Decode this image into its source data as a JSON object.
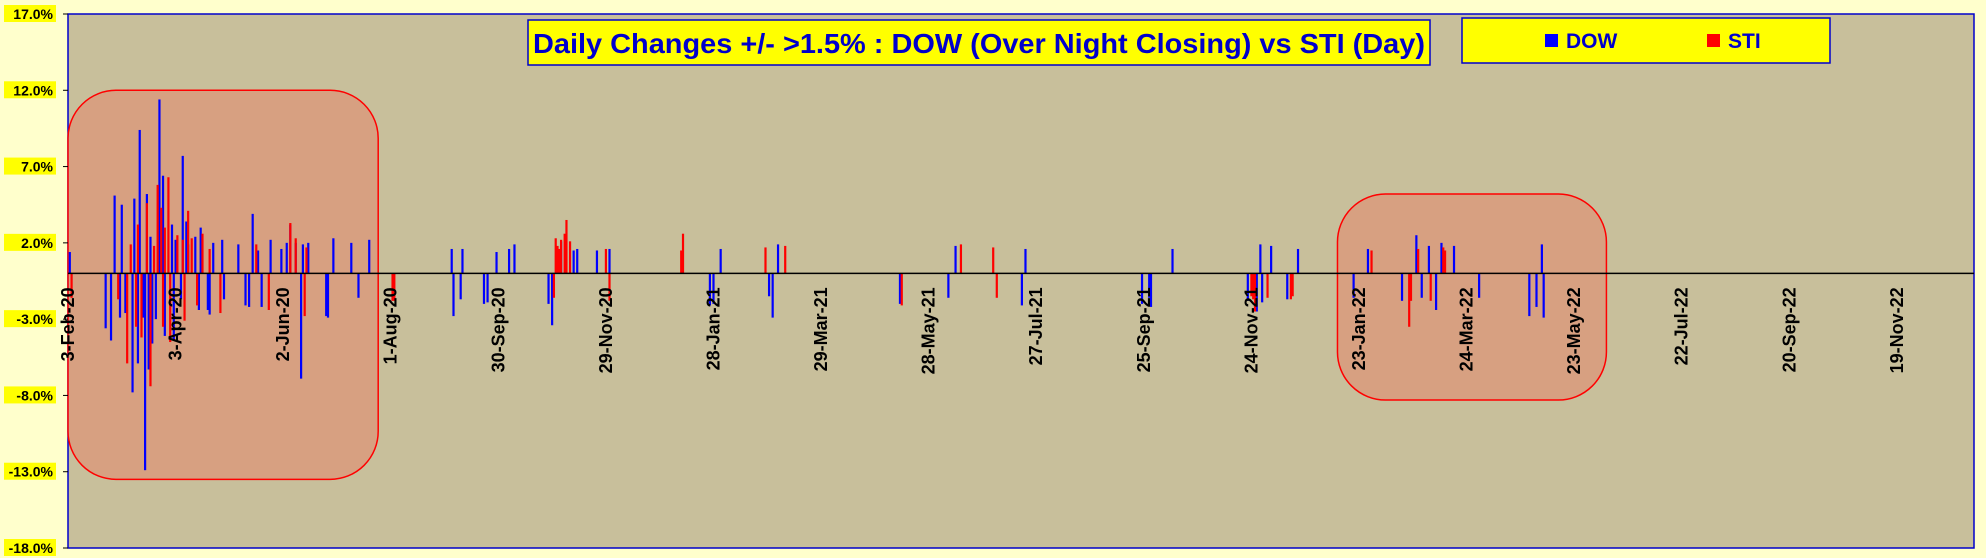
{
  "chart_data": {
    "type": "bar",
    "title": "Daily Changes +/- >1.5% : DOW (Over Night Closing) vs STI (Day)",
    "xlabel": "",
    "ylabel": "",
    "ylim": [
      -18,
      17
    ],
    "xlim": [
      "2020-02-03",
      "2023-01-01"
    ],
    "y_tick_labels": [
      "17.0%",
      "12.0%",
      "7.0%",
      "2.0%",
      "-3.0%",
      "-8.0%",
      "-13.0%",
      "-18.0%"
    ],
    "y_tick_values": [
      17,
      12,
      7,
      2,
      -3,
      -8,
      -13,
      -18
    ],
    "x_tick_labels": [
      "3-Feb-20",
      "3-Apr-20",
      "2-Jun-20",
      "1-Aug-20",
      "30-Sep-20",
      "29-Nov-20",
      "28-Jan-21",
      "29-Mar-21",
      "28-May-21",
      "27-Jul-21",
      "25-Sep-21",
      "24-Nov-21",
      "23-Jan-22",
      "24-Mar-22",
      "23-May-22",
      "22-Jul-22",
      "20-Sep-22",
      "19-Nov-22"
    ],
    "x_tick_dates": [
      "2020-02-03",
      "2020-04-03",
      "2020-06-02",
      "2020-08-01",
      "2020-09-30",
      "2020-11-29",
      "2021-01-28",
      "2021-03-29",
      "2021-05-28",
      "2021-07-27",
      "2021-09-25",
      "2021-11-24",
      "2022-01-23",
      "2022-03-24",
      "2022-05-23",
      "2022-07-22",
      "2022-09-20",
      "2022-11-19"
    ],
    "legend_position": "top-right",
    "grid": false,
    "colors": {
      "plot_bg": "#c8bf9b",
      "page_bg": "#ffffcc",
      "dow": "#0000ff",
      "sti": "#ff0000",
      "frame": "#0000cc",
      "highlight": "#d99a7c",
      "highlight_border": "#ff0000",
      "title_bg": "#ffff00"
    },
    "highlight_regions": [
      {
        "start": "2020-02-03",
        "end": "2020-07-25",
        "ymin": -13.5,
        "ymax": 12
      },
      {
        "start": "2022-01-11",
        "end": "2022-06-10",
        "ymin": -8.3,
        "ymax": 5.2
      }
    ],
    "series": [
      {
        "name": "DOW",
        "points": [
          [
            "2020-02-04",
            1.4
          ],
          [
            "2020-02-24",
            -3.6
          ],
          [
            "2020-02-27",
            -4.4
          ],
          [
            "2020-02-29",
            5.1
          ],
          [
            "2020-03-03",
            -2.9
          ],
          [
            "2020-03-04",
            4.5
          ],
          [
            "2020-03-06",
            -2.6
          ],
          [
            "2020-03-10",
            -7.8
          ],
          [
            "2020-03-11",
            4.9
          ],
          [
            "2020-03-13",
            -5.9
          ],
          [
            "2020-03-14",
            9.4
          ],
          [
            "2020-03-16",
            -2.9
          ],
          [
            "2020-03-17",
            -12.9
          ],
          [
            "2020-03-18",
            5.2
          ],
          [
            "2020-03-19",
            -6.3
          ],
          [
            "2020-03-20",
            2.4
          ],
          [
            "2020-03-21",
            -4.6
          ],
          [
            "2020-03-23",
            -3.0
          ],
          [
            "2020-03-25",
            11.4
          ],
          [
            "2020-03-26",
            2.4
          ],
          [
            "2020-03-27",
            6.4
          ],
          [
            "2020-03-28",
            -4.1
          ],
          [
            "2020-04-01",
            3.2
          ],
          [
            "2020-04-02",
            -4.4
          ],
          [
            "2020-04-03",
            2.2
          ],
          [
            "2020-04-06",
            -1.7
          ],
          [
            "2020-04-07",
            7.7
          ],
          [
            "2020-04-09",
            3.4
          ],
          [
            "2020-04-10",
            1.9
          ],
          [
            "2020-04-14",
            2.4
          ],
          [
            "2020-04-16",
            -2.4
          ],
          [
            "2020-04-17",
            3.0
          ],
          [
            "2020-04-21",
            -2.4
          ],
          [
            "2020-04-22",
            -2.7
          ],
          [
            "2020-04-24",
            2.0
          ],
          [
            "2020-04-29",
            2.2
          ],
          [
            "2020-04-30",
            -1.7
          ],
          [
            "2020-05-08",
            1.9
          ],
          [
            "2020-05-12",
            -2.1
          ],
          [
            "2020-05-14",
            -2.2
          ],
          [
            "2020-05-16",
            3.9
          ],
          [
            "2020-05-19",
            1.5
          ],
          [
            "2020-05-21",
            -2.2
          ],
          [
            "2020-05-26",
            2.2
          ],
          [
            "2020-06-01",
            1.6
          ],
          [
            "2020-06-04",
            2.0
          ],
          [
            "2020-06-06",
            3.2
          ],
          [
            "2020-06-09",
            2.0
          ],
          [
            "2020-06-12",
            -6.9
          ],
          [
            "2020-06-13",
            1.9
          ],
          [
            "2020-06-16",
            2.0
          ],
          [
            "2020-06-26",
            -2.8
          ],
          [
            "2020-06-27",
            -2.9
          ],
          [
            "2020-06-30",
            2.3
          ],
          [
            "2020-07-10",
            2.0
          ],
          [
            "2020-07-14",
            -1.6
          ],
          [
            "2020-07-20",
            2.2
          ],
          [
            "2020-09-04",
            1.6
          ],
          [
            "2020-09-05",
            -2.8
          ],
          [
            "2020-09-09",
            -1.7
          ],
          [
            "2020-09-10",
            1.6
          ],
          [
            "2020-09-22",
            -2.0
          ],
          [
            "2020-09-24",
            -1.9
          ],
          [
            "2020-09-29",
            1.4
          ],
          [
            "2020-10-06",
            1.6
          ],
          [
            "2020-10-09",
            1.9
          ],
          [
            "2020-10-28",
            -2.0
          ],
          [
            "2020-10-30",
            -3.4
          ],
          [
            "2020-11-04",
            2.1
          ],
          [
            "2020-11-11",
            1.5
          ],
          [
            "2020-11-13",
            1.6
          ],
          [
            "2020-11-24",
            1.5
          ],
          [
            "2020-12-01",
            1.6
          ],
          [
            "2021-01-26",
            -2.1
          ],
          [
            "2021-01-28",
            -2.0
          ],
          [
            "2021-02-01",
            1.6
          ],
          [
            "2021-02-28",
            -1.5
          ],
          [
            "2021-03-02",
            -2.9
          ],
          [
            "2021-03-05",
            1.9
          ],
          [
            "2021-05-12",
            -2.0
          ],
          [
            "2021-06-08",
            -1.6
          ],
          [
            "2021-06-12",
            1.8
          ],
          [
            "2021-07-19",
            -2.1
          ],
          [
            "2021-07-21",
            1.6
          ],
          [
            "2021-09-24",
            -2.0
          ],
          [
            "2021-09-28",
            -1.6
          ],
          [
            "2021-09-29",
            -2.2
          ],
          [
            "2021-10-11",
            1.6
          ],
          [
            "2021-11-22",
            -1.8
          ],
          [
            "2021-11-27",
            -2.5
          ],
          [
            "2021-11-29",
            1.9
          ],
          [
            "2021-11-30",
            -1.9
          ],
          [
            "2021-12-05",
            1.8
          ],
          [
            "2021-12-14",
            -1.7
          ],
          [
            "2021-12-20",
            1.6
          ],
          [
            "2022-01-20",
            -1.6
          ],
          [
            "2022-01-28",
            1.6
          ],
          [
            "2022-02-16",
            -1.8
          ],
          [
            "2022-02-24",
            2.5
          ],
          [
            "2022-02-27",
            -1.6
          ],
          [
            "2022-03-03",
            1.8
          ],
          [
            "2022-03-07",
            -2.4
          ],
          [
            "2022-03-10",
            2.0
          ],
          [
            "2022-03-17",
            1.8
          ],
          [
            "2022-03-31",
            -1.6
          ],
          [
            "2022-04-28",
            -2.8
          ],
          [
            "2022-05-02",
            -2.2
          ],
          [
            "2022-05-05",
            1.9
          ],
          [
            "2022-05-06",
            -2.9
          ]
        ]
      },
      {
        "name": "STI",
        "points": [
          [
            "2020-02-05",
            -1.6
          ],
          [
            "2020-03-02",
            -1.7
          ],
          [
            "2020-03-07",
            -5.9
          ],
          [
            "2020-03-09",
            1.9
          ],
          [
            "2020-03-12",
            -3.5
          ],
          [
            "2020-03-13",
            3.2
          ],
          [
            "2020-03-15",
            -4.2
          ],
          [
            "2020-03-18",
            4.6
          ],
          [
            "2020-03-20",
            -7.4
          ],
          [
            "2020-03-22",
            1.8
          ],
          [
            "2020-03-24",
            5.8
          ],
          [
            "2020-03-26",
            4.3
          ],
          [
            "2020-03-27",
            -3.5
          ],
          [
            "2020-03-28",
            3.0
          ],
          [
            "2020-03-30",
            6.3
          ],
          [
            "2020-03-31",
            -4.5
          ],
          [
            "2020-04-04",
            2.5
          ],
          [
            "2020-04-07",
            2.2
          ],
          [
            "2020-04-08",
            -3.1
          ],
          [
            "2020-04-10",
            4.1
          ],
          [
            "2020-04-12",
            2.3
          ],
          [
            "2020-04-15",
            -2.1
          ],
          [
            "2020-04-18",
            2.6
          ],
          [
            "2020-04-22",
            1.6
          ],
          [
            "2020-04-28",
            -2.6
          ],
          [
            "2020-05-18",
            1.9
          ],
          [
            "2020-05-25",
            -2.4
          ],
          [
            "2020-06-06",
            3.3
          ],
          [
            "2020-06-09",
            2.3
          ],
          [
            "2020-06-14",
            -2.8
          ],
          [
            "2020-06-15",
            1.7
          ],
          [
            "2020-08-02",
            -1.8
          ],
          [
            "2020-08-03",
            -1.8
          ],
          [
            "2020-10-31",
            -1.6
          ],
          [
            "2020-11-01",
            2.3
          ],
          [
            "2020-11-02",
            1.8
          ],
          [
            "2020-11-03",
            1.6
          ],
          [
            "2020-11-04",
            2.2
          ],
          [
            "2020-11-06",
            2.6
          ],
          [
            "2020-11-07",
            3.5
          ],
          [
            "2020-11-09",
            2.1
          ],
          [
            "2020-11-29",
            1.6
          ],
          [
            "2020-12-01",
            -1.8
          ],
          [
            "2021-01-10",
            1.5
          ],
          [
            "2021-01-11",
            2.6
          ],
          [
            "2021-02-26",
            1.7
          ],
          [
            "2021-03-09",
            1.8
          ],
          [
            "2021-05-13",
            -2.1
          ],
          [
            "2021-06-15",
            1.9
          ],
          [
            "2021-07-03",
            1.7
          ],
          [
            "2021-07-05",
            -1.6
          ],
          [
            "2021-11-24",
            -1.5
          ],
          [
            "2021-11-25",
            -1.7
          ],
          [
            "2021-11-26",
            -2.5
          ],
          [
            "2021-12-03",
            -1.6
          ],
          [
            "2021-12-16",
            -1.7
          ],
          [
            "2021-12-17",
            -1.5
          ],
          [
            "2022-01-30",
            1.5
          ],
          [
            "2022-02-20",
            -3.5
          ],
          [
            "2022-02-21",
            -1.8
          ],
          [
            "2022-02-25",
            1.6
          ],
          [
            "2022-03-04",
            -1.8
          ],
          [
            "2022-03-11",
            1.7
          ],
          [
            "2022-03-12",
            1.5
          ]
        ]
      }
    ]
  }
}
